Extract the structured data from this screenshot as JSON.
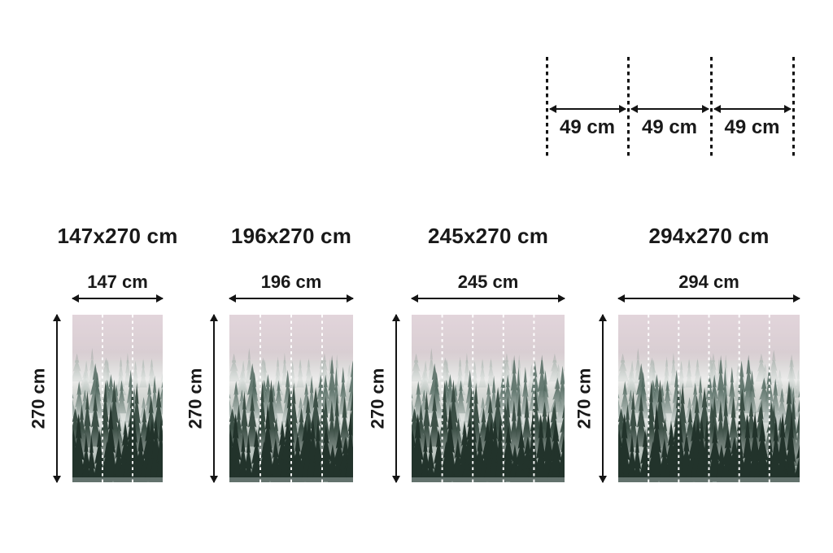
{
  "page_background": "#ffffff",
  "text_color": "#191919",
  "panel_diagram": {
    "description": "roll/panel width guide with dashed cut lines",
    "panel_width_cm": 49,
    "segments": [
      {
        "label": "49 cm"
      },
      {
        "label": "49 cm"
      },
      {
        "label": "49 cm"
      }
    ]
  },
  "sizes": {
    "height_cm": 270,
    "panel_width_cm": 49,
    "items": [
      {
        "title": "147x270 cm",
        "width_label": "147 cm",
        "height_label": "270 cm",
        "width_cm": 147,
        "height_cm": 270,
        "panels": 3
      },
      {
        "title": "196x270 cm",
        "width_label": "196 cm",
        "height_label": "270 cm",
        "width_cm": 196,
        "height_cm": 270,
        "panels": 4
      },
      {
        "title": "245x270 cm",
        "width_label": "245 cm",
        "height_label": "270 cm",
        "width_cm": 245,
        "height_cm": 270,
        "panels": 5
      },
      {
        "title": "294x270 cm",
        "width_label": "294 cm",
        "height_label": "270 cm",
        "width_cm": 294,
        "height_cm": 270,
        "panels": 6
      }
    ]
  },
  "mural": {
    "alt": "misty coniferous forest in fog",
    "palette": {
      "sky_top": "#e1d5db",
      "sky_mid": "#d6cdd1",
      "sky_green": "#bfc2bd",
      "sky_low": "#9caaa2",
      "horizon": "#7b8d84",
      "trees_far": "#87988f",
      "trees_mid": "#51685f",
      "trees_near": "#35493f",
      "trees_front": "#22332b",
      "fog": "#ffffff",
      "pink_haze": "#e3d4da",
      "ground_mist": "#a3b1b0",
      "divider": "#ffffff"
    }
  }
}
